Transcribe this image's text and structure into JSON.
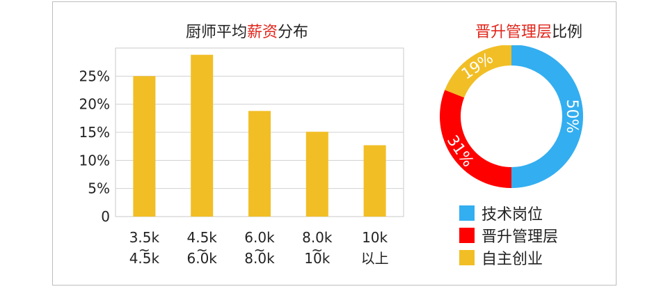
{
  "bar_title_prefix": "厨师平均",
  "bar_title_highlight": "薪资",
  "bar_title_suffix": "分布",
  "donut_title_red": "晋升管理层",
  "donut_title_black": "比例",
  "colors": {
    "bar": "#f1be25",
    "blue": "#33aef0",
    "red": "#ff0000",
    "yellow": "#f1be25",
    "highlight": "#e1251b"
  },
  "chart_data": [
    {
      "type": "bar",
      "title": "厨师平均薪资分布",
      "categories": [
        [
          "3.5k",
          "~",
          "4.5k"
        ],
        [
          "4.5k",
          "~",
          "6.0k"
        ],
        [
          "6.0k",
          "~",
          "8.0k"
        ],
        [
          "8.0k",
          "~",
          "10k"
        ],
        [
          "10k",
          "以上"
        ]
      ],
      "values": [
        25,
        28.8,
        18.8,
        15.1,
        12.7
      ],
      "y_ticks": [
        "0",
        "5%",
        "10%",
        "15%",
        "20%",
        "25%"
      ],
      "ylim": [
        0,
        30
      ],
      "grid": true
    },
    {
      "type": "pie",
      "title": "晋升管理层比例",
      "slices": [
        {
          "label": "技术岗位",
          "value": 50,
          "text": "50%",
          "color": "#33aef0"
        },
        {
          "label": "晋升管理层",
          "value": 31,
          "text": "31%",
          "color": "#ff0000"
        },
        {
          "label": "自主创业",
          "value": 19,
          "text": "19%",
          "color": "#f1be25"
        }
      ]
    }
  ]
}
